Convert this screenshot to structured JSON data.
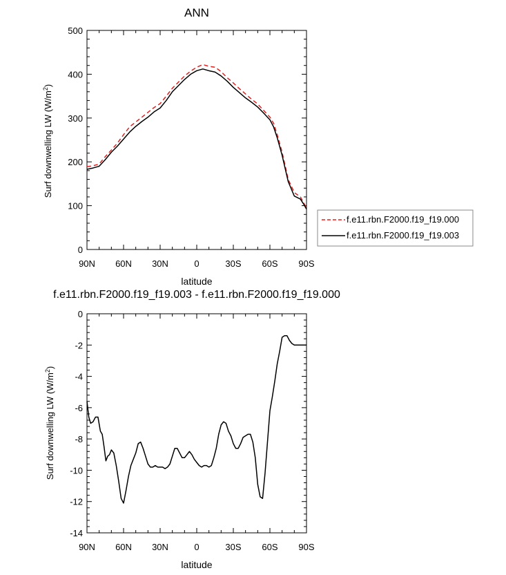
{
  "chart_data": [
    {
      "type": "line",
      "title": "ANN",
      "xlabel": "latitude",
      "ylabel": "Surf downwelling LW (W/m",
      "ylabel_sup": "2",
      "ylabel_close": ")",
      "xlim": [
        90,
        -90
      ],
      "ylim": [
        0,
        500
      ],
      "x_ticks": [
        90,
        60,
        30,
        0,
        -30,
        -60,
        -90
      ],
      "x_tick_labels": [
        "90N",
        "60N",
        "30N",
        "0",
        "30S",
        "60S",
        "90S"
      ],
      "y_ticks": [
        0,
        100,
        200,
        300,
        400,
        500
      ],
      "y_tick_labels": [
        "0",
        "100",
        "200",
        "300",
        "400",
        "500"
      ],
      "legend_position": "right",
      "series": [
        {
          "name": "f.e11.rbn.F2000.f19_f19.000",
          "color": "#e02020",
          "dash": "dashed",
          "x": [
            90,
            85,
            80,
            75,
            70,
            65,
            60,
            55,
            50,
            45,
            40,
            35,
            30,
            25,
            20,
            15,
            10,
            5,
            0,
            -5,
            -10,
            -15,
            -20,
            -25,
            -30,
            -35,
            -40,
            -45,
            -50,
            -55,
            -60,
            -63,
            -66,
            -70,
            -75,
            -80,
            -85,
            -88,
            -90
          ],
          "y": [
            189,
            191,
            195,
            212,
            227,
            243,
            262,
            280,
            291,
            302,
            313,
            324,
            333,
            350,
            368,
            382,
            396,
            407,
            416,
            422,
            418,
            416,
            406,
            392,
            380,
            367,
            355,
            343,
            332,
            317,
            302,
            288,
            262,
            222,
            160,
            130,
            120,
            105,
            95
          ]
        },
        {
          "name": "f.e11.rbn.F2000.f19_f19.003",
          "color": "#000000",
          "dash": "solid",
          "x": [
            90,
            85,
            80,
            75,
            70,
            65,
            60,
            55,
            50,
            45,
            40,
            35,
            30,
            25,
            20,
            15,
            10,
            5,
            0,
            -5,
            -10,
            -15,
            -20,
            -25,
            -30,
            -35,
            -40,
            -45,
            -50,
            -55,
            -60,
            -63,
            -66,
            -70,
            -75,
            -80,
            -85,
            -88,
            -90
          ],
          "y": [
            183,
            186,
            190,
            205,
            222,
            236,
            252,
            268,
            281,
            292,
            302,
            314,
            323,
            340,
            360,
            374,
            388,
            400,
            408,
            412,
            408,
            405,
            396,
            384,
            370,
            358,
            346,
            336,
            325,
            311,
            296,
            280,
            255,
            215,
            155,
            122,
            115,
            102,
            92
          ]
        }
      ]
    },
    {
      "type": "line",
      "title": "f.e11.rbn.F2000.f19_f19.003 - f.e11.rbn.F2000.f19_f19.000",
      "xlabel": "latitude",
      "ylabel": "Surf downwelling LW (W/m",
      "ylabel_sup": "2",
      "ylabel_close": ")",
      "xlim": [
        90,
        -90
      ],
      "ylim": [
        -14,
        0
      ],
      "x_ticks": [
        90,
        60,
        30,
        0,
        -30,
        -60,
        -90
      ],
      "x_tick_labels": [
        "90N",
        "60N",
        "30N",
        "0",
        "30S",
        "60S",
        "90S"
      ],
      "y_ticks": [
        0,
        -2,
        -4,
        -6,
        -8,
        -10,
        -12,
        -14
      ],
      "y_tick_labels": [
        "0",
        "-2",
        "-4",
        "-6",
        "-8",
        "-10",
        "-12",
        "-14"
      ],
      "series": [
        {
          "color": "#000000",
          "dash": "solid",
          "x": [
            90,
            88.5,
            87,
            85,
            83,
            81,
            79,
            77.5,
            76,
            74.5,
            73,
            71.5,
            70,
            68,
            66,
            64,
            62,
            60,
            58,
            56,
            54,
            52,
            50,
            48,
            46,
            44,
            42,
            40,
            38,
            36,
            34,
            32,
            30,
            28,
            26,
            24,
            22,
            20,
            18,
            16,
            14,
            12,
            10,
            8,
            6,
            4,
            2,
            0,
            -2,
            -4,
            -6,
            -8,
            -10,
            -12,
            -14,
            -16,
            -18,
            -20,
            -22,
            -24,
            -26,
            -28,
            -30,
            -32,
            -34,
            -36,
            -38,
            -40,
            -42,
            -44,
            -46,
            -48,
            -50,
            -52,
            -54,
            -56,
            -58,
            -60,
            -62,
            -64,
            -66,
            -68,
            -70,
            -72,
            -74,
            -76,
            -78,
            -80,
            -82,
            -84,
            -86,
            -88,
            -90
          ],
          "y": [
            -5.6,
            -6.6,
            -7.0,
            -6.9,
            -6.6,
            -6.6,
            -7.5,
            -7.7,
            -8.5,
            -9.4,
            -9.1,
            -9.0,
            -8.7,
            -8.9,
            -9.7,
            -10.7,
            -11.8,
            -12.1,
            -11.3,
            -10.4,
            -9.7,
            -9.3,
            -8.9,
            -8.3,
            -8.2,
            -8.6,
            -9.1,
            -9.6,
            -9.8,
            -9.8,
            -9.7,
            -9.8,
            -9.8,
            -9.8,
            -9.9,
            -9.8,
            -9.6,
            -9.1,
            -8.6,
            -8.6,
            -8.9,
            -9.2,
            -9.2,
            -9.0,
            -8.8,
            -9.0,
            -9.3,
            -9.5,
            -9.7,
            -9.8,
            -9.7,
            -9.7,
            -9.8,
            -9.7,
            -9.2,
            -8.6,
            -7.7,
            -7.1,
            -6.9,
            -7.0,
            -7.5,
            -7.8,
            -8.3,
            -8.6,
            -8.6,
            -8.3,
            -7.9,
            -7.8,
            -7.7,
            -7.7,
            -8.2,
            -9.2,
            -10.9,
            -11.7,
            -11.8,
            -10.2,
            -8.2,
            -6.2,
            -5.3,
            -4.3,
            -3.2,
            -2.4,
            -1.5,
            -1.4,
            -1.4,
            -1.7,
            -1.9,
            -2.0,
            -2.0,
            -2.0,
            -2.0,
            -2.0,
            -2.0
          ]
        }
      ]
    }
  ]
}
